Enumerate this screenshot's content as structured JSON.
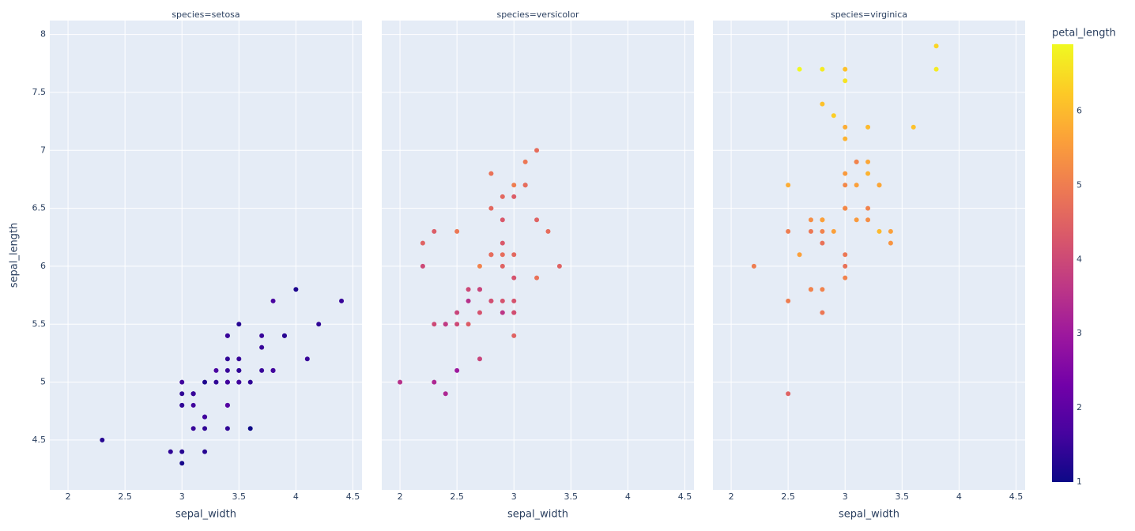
{
  "chart_data": [
    {
      "type": "scatter",
      "title": "species=setosa",
      "x_label": "sepal_width",
      "y_label": "sepal_length",
      "x": [
        3.5,
        3,
        3.2,
        3.1,
        3.6,
        3.9,
        3.4,
        3.4,
        2.9,
        3.1,
        3.7,
        3.4,
        3,
        3,
        4,
        4.4,
        3.9,
        3.5,
        3.8,
        3.8,
        3.4,
        3.7,
        3.6,
        3.3,
        3.4,
        3,
        3.4,
        3.5,
        3.4,
        3.2,
        3.1,
        3.4,
        4.1,
        4.2,
        3.1,
        3.2,
        3.5,
        3.1,
        3,
        3.4,
        3.5,
        2.3,
        3.2,
        3.5,
        3.8,
        3,
        3.8,
        3.2,
        3.7,
        3.3
      ],
      "y": [
        5.1,
        4.9,
        4.7,
        4.6,
        5,
        5.4,
        4.6,
        5,
        4.4,
        4.9,
        5.4,
        4.8,
        4.8,
        4.3,
        5.8,
        5.7,
        5.4,
        5.1,
        5.7,
        5.1,
        5.4,
        5.1,
        4.6,
        5.1,
        4.8,
        5,
        5,
        5.2,
        5.2,
        4.7,
        4.8,
        5.4,
        5.2,
        5.5,
        4.9,
        5,
        5.5,
        4.9,
        4.4,
        5.1,
        5,
        4.5,
        4.4,
        5,
        5.1,
        4.8,
        5.1,
        4.6,
        5.3,
        5
      ],
      "color_values": [
        1.4,
        1.4,
        1.3,
        1.5,
        1.4,
        1.7,
        1.4,
        1.5,
        1.4,
        1.5,
        1.5,
        1.6,
        1.4,
        1.1,
        1.2,
        1.5,
        1.3,
        1.4,
        1.7,
        1.5,
        1.7,
        1.5,
        1,
        1.7,
        1.9,
        1.6,
        1.6,
        1.5,
        1.4,
        1.6,
        1.6,
        1.5,
        1.5,
        1.4,
        1.5,
        1.2,
        1.3,
        1.5,
        1.3,
        1.5,
        1.3,
        1.3,
        1.3,
        1.6,
        1.9,
        1.4,
        1.6,
        1.4,
        1.5,
        1.4
      ],
      "xlim": [
        1.84,
        4.58
      ],
      "ylim": [
        4.07,
        8.12
      ],
      "xticks": [
        2,
        2.5,
        3,
        3.5,
        4,
        4.5
      ],
      "yticks": [
        4.5,
        5,
        5.5,
        6,
        6.5,
        7,
        7.5,
        8
      ],
      "grid": true
    },
    {
      "type": "scatter",
      "title": "species=versicolor",
      "x_label": "sepal_width",
      "x": [
        3.2,
        3.2,
        3.1,
        2.3,
        2.8,
        2.8,
        3.3,
        2.4,
        2.9,
        2.7,
        2,
        3,
        2.2,
        2.9,
        2.9,
        3.1,
        3,
        2.7,
        2.2,
        2.5,
        3.2,
        2.8,
        2.5,
        2.8,
        2.9,
        3,
        2.8,
        3,
        2.9,
        2.6,
        2.4,
        2.4,
        2.7,
        2.7,
        3,
        3.4,
        3.1,
        2.3,
        3,
        2.5,
        2.6,
        3,
        2.6,
        2.3,
        2.7,
        3,
        2.9,
        2.9,
        2.5,
        2.8
      ],
      "y": [
        7,
        6.4,
        6.9,
        5.5,
        6.5,
        5.7,
        6.3,
        4.9,
        6.6,
        5.2,
        5,
        5.9,
        6,
        6.1,
        5.6,
        6.7,
        5.6,
        5.8,
        6.2,
        5.6,
        5.9,
        6.1,
        6.3,
        6.1,
        6.4,
        6.6,
        6.8,
        6.7,
        6,
        5.7,
        5.5,
        5.5,
        5.8,
        6,
        5.4,
        6,
        6.7,
        6.3,
        5.6,
        5.5,
        5.5,
        6.1,
        5.8,
        5,
        5.6,
        5.7,
        5.7,
        6.2,
        5.1,
        5.7
      ],
      "color_values": [
        4.7,
        4.5,
        4.9,
        4,
        4.6,
        4.5,
        4.7,
        3.3,
        4.6,
        3.9,
        3.5,
        4.2,
        4,
        4.7,
        3.6,
        4.4,
        4.5,
        4.1,
        4.5,
        3.9,
        4.8,
        4,
        4.9,
        4.7,
        4.3,
        4.4,
        4.8,
        5,
        4.5,
        3.5,
        3.8,
        3.7,
        3.9,
        5.1,
        4.5,
        4.5,
        4.7,
        4.4,
        4.1,
        4,
        4.4,
        4.6,
        4,
        3.3,
        4.2,
        4.2,
        4.2,
        4.3,
        3,
        4.1
      ],
      "xlim": [
        1.84,
        4.58
      ],
      "ylim": [
        4.07,
        8.12
      ],
      "xticks": [
        2,
        2.5,
        3,
        3.5,
        4,
        4.5
      ],
      "yticks": [
        4.5,
        5,
        5.5,
        6,
        6.5,
        7,
        7.5,
        8
      ],
      "grid": true
    },
    {
      "type": "scatter",
      "title": "species=virginica",
      "x_label": "sepal_width",
      "x": [
        3.3,
        2.7,
        3,
        2.9,
        3,
        3,
        2.5,
        2.9,
        2.5,
        3.6,
        3.2,
        2.7,
        3,
        2.5,
        2.8,
        3.2,
        3,
        3.8,
        2.6,
        2.2,
        3.2,
        2.8,
        2.8,
        2.7,
        3.3,
        3.2,
        2.8,
        3,
        2.8,
        3,
        2.8,
        3.8,
        2.8,
        2.8,
        2.6,
        3,
        3.4,
        3.1,
        3,
        3.1,
        3.1,
        3.1,
        2.7,
        3.2,
        3.3,
        3,
        2.5,
        3,
        3.4,
        3
      ],
      "y": [
        6.3,
        5.8,
        7.1,
        6.3,
        6.5,
        7.6,
        4.9,
        7.3,
        6.7,
        7.2,
        6.5,
        6.4,
        6.8,
        5.7,
        5.8,
        6.4,
        6.5,
        7.7,
        7.7,
        6,
        6.9,
        5.6,
        7.7,
        6.3,
        6.7,
        7.2,
        6.2,
        6.1,
        6.4,
        7.2,
        7.4,
        7.9,
        6.4,
        6.3,
        6.1,
        7.7,
        6.3,
        6.4,
        6,
        6.9,
        6.7,
        6.9,
        5.8,
        6.8,
        6.7,
        6.7,
        6.3,
        6.5,
        6.2,
        5.9
      ],
      "color_values": [
        6,
        5.1,
        5.9,
        5.6,
        5.8,
        6.6,
        4.5,
        6.3,
        5.8,
        6.1,
        5.1,
        5.3,
        5.5,
        5,
        5.1,
        5.3,
        5.5,
        6.7,
        6.9,
        5,
        5.7,
        4.9,
        6.7,
        4.9,
        5.7,
        6,
        4.8,
        4.9,
        5.6,
        5.8,
        6.1,
        6.4,
        5.6,
        5.1,
        5.6,
        6.1,
        5.6,
        5.5,
        4.8,
        5.4,
        5.6,
        5.1,
        5.1,
        5.9,
        5.7,
        5.2,
        5,
        5.2,
        5.4,
        5.1
      ],
      "xlim": [
        1.84,
        4.58
      ],
      "ylim": [
        4.07,
        8.12
      ],
      "xticks": [
        2,
        2.5,
        3,
        3.5,
        4,
        4.5
      ],
      "yticks": [
        4.5,
        5,
        5.5,
        6,
        6.5,
        7,
        7.5,
        8
      ],
      "grid": true
    }
  ],
  "coloraxis": {
    "title": "petal_length",
    "lim": [
      1,
      6.9
    ],
    "ticks": [
      1,
      2,
      3,
      4,
      5,
      6
    ],
    "colorscale": [
      "#0d0887",
      "#46039f",
      "#7201a8",
      "#9c179e",
      "#bd3786",
      "#d8576b",
      "#ed7953",
      "#fb9f3a",
      "#fdca26",
      "#f0f921"
    ]
  }
}
